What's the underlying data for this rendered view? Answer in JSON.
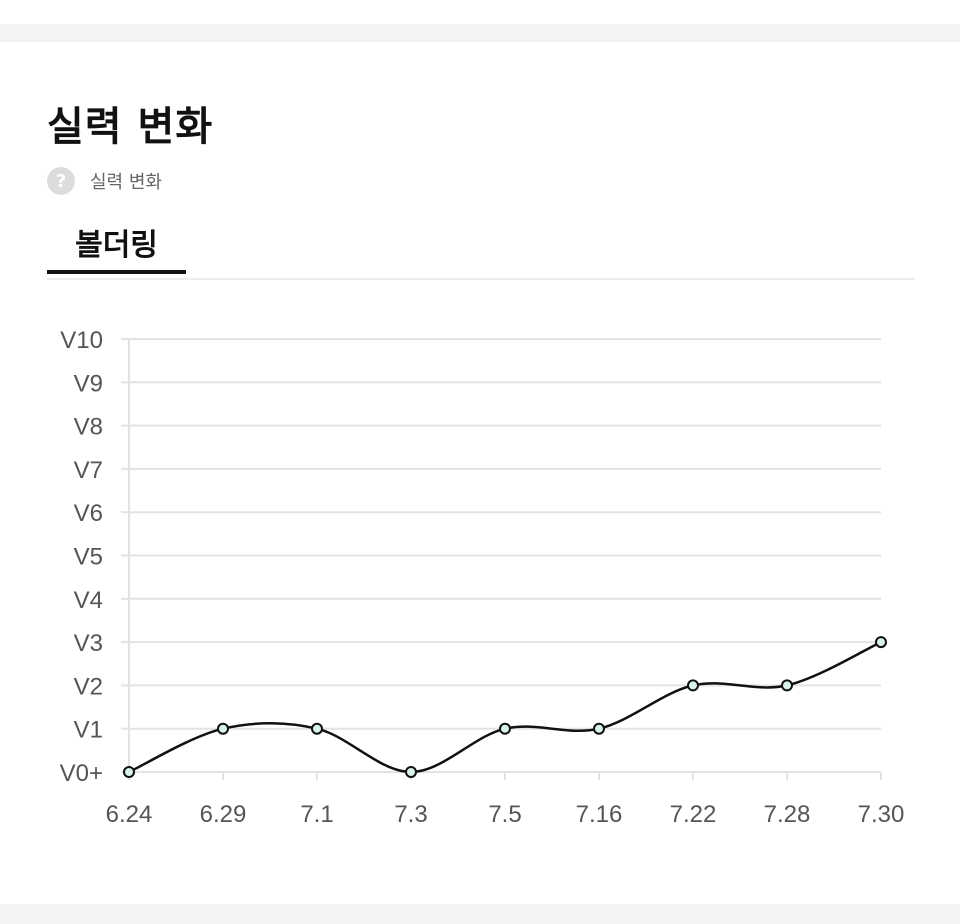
{
  "header": {
    "title": "실력 변화"
  },
  "help": {
    "icon": "?",
    "label": "실력 변화"
  },
  "tabs": [
    {
      "label": "볼더링",
      "active": true
    }
  ],
  "colors": {
    "line": "#111111",
    "grid": "#e3e3e3",
    "point_fill": "#d8f3ea",
    "point_stroke": "#111111"
  },
  "chart_data": {
    "type": "line",
    "categories": [
      "6.24",
      "6.29",
      "7.1",
      "7.3",
      "7.5",
      "7.16",
      "7.22",
      "7.28",
      "7.30"
    ],
    "y_ticks": [
      "V0+",
      "V1",
      "V2",
      "V3",
      "V4",
      "V5",
      "V6",
      "V7",
      "V8",
      "V9",
      "V10"
    ],
    "values": [
      0,
      1,
      1,
      0,
      1,
      1,
      2,
      2,
      3
    ],
    "ylim": [
      0,
      10
    ],
    "grid": true,
    "smooth": true
  }
}
